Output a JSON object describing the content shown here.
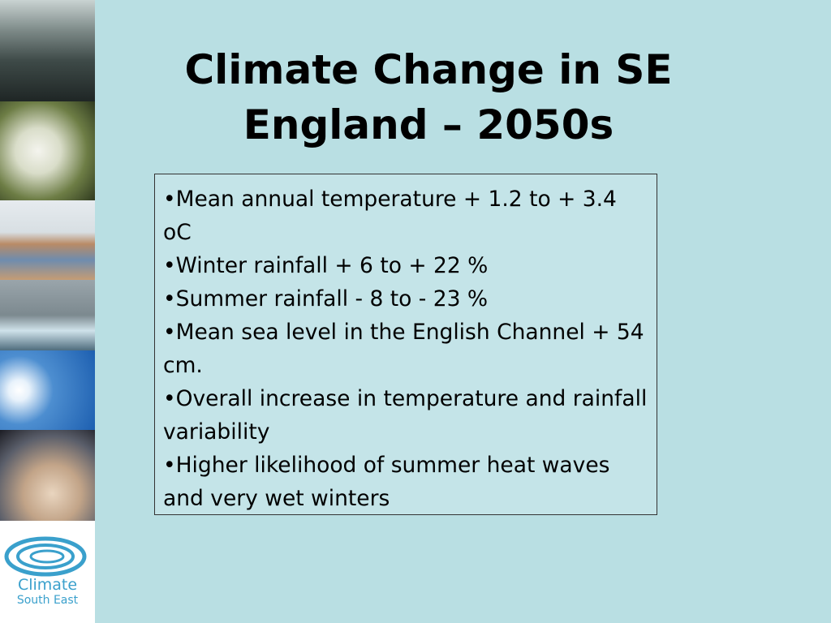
{
  "title": "Climate Change in SE England – 2050s",
  "bullets": [
    "•Mean annual temperature + 1.2 to + 3.4 oC",
    "•Winter rainfall + 6 to + 22 %",
    "•Summer rainfall - 8 to - 23 %",
    "•Mean sea level in the English Channel + 54 cm.",
    "•Overall increase in temperature and rainfall variability",
    "•Higher likelihood of summer heat waves and very wet winters"
  ],
  "logo": {
    "line1": "Climate",
    "line2": "South East"
  }
}
